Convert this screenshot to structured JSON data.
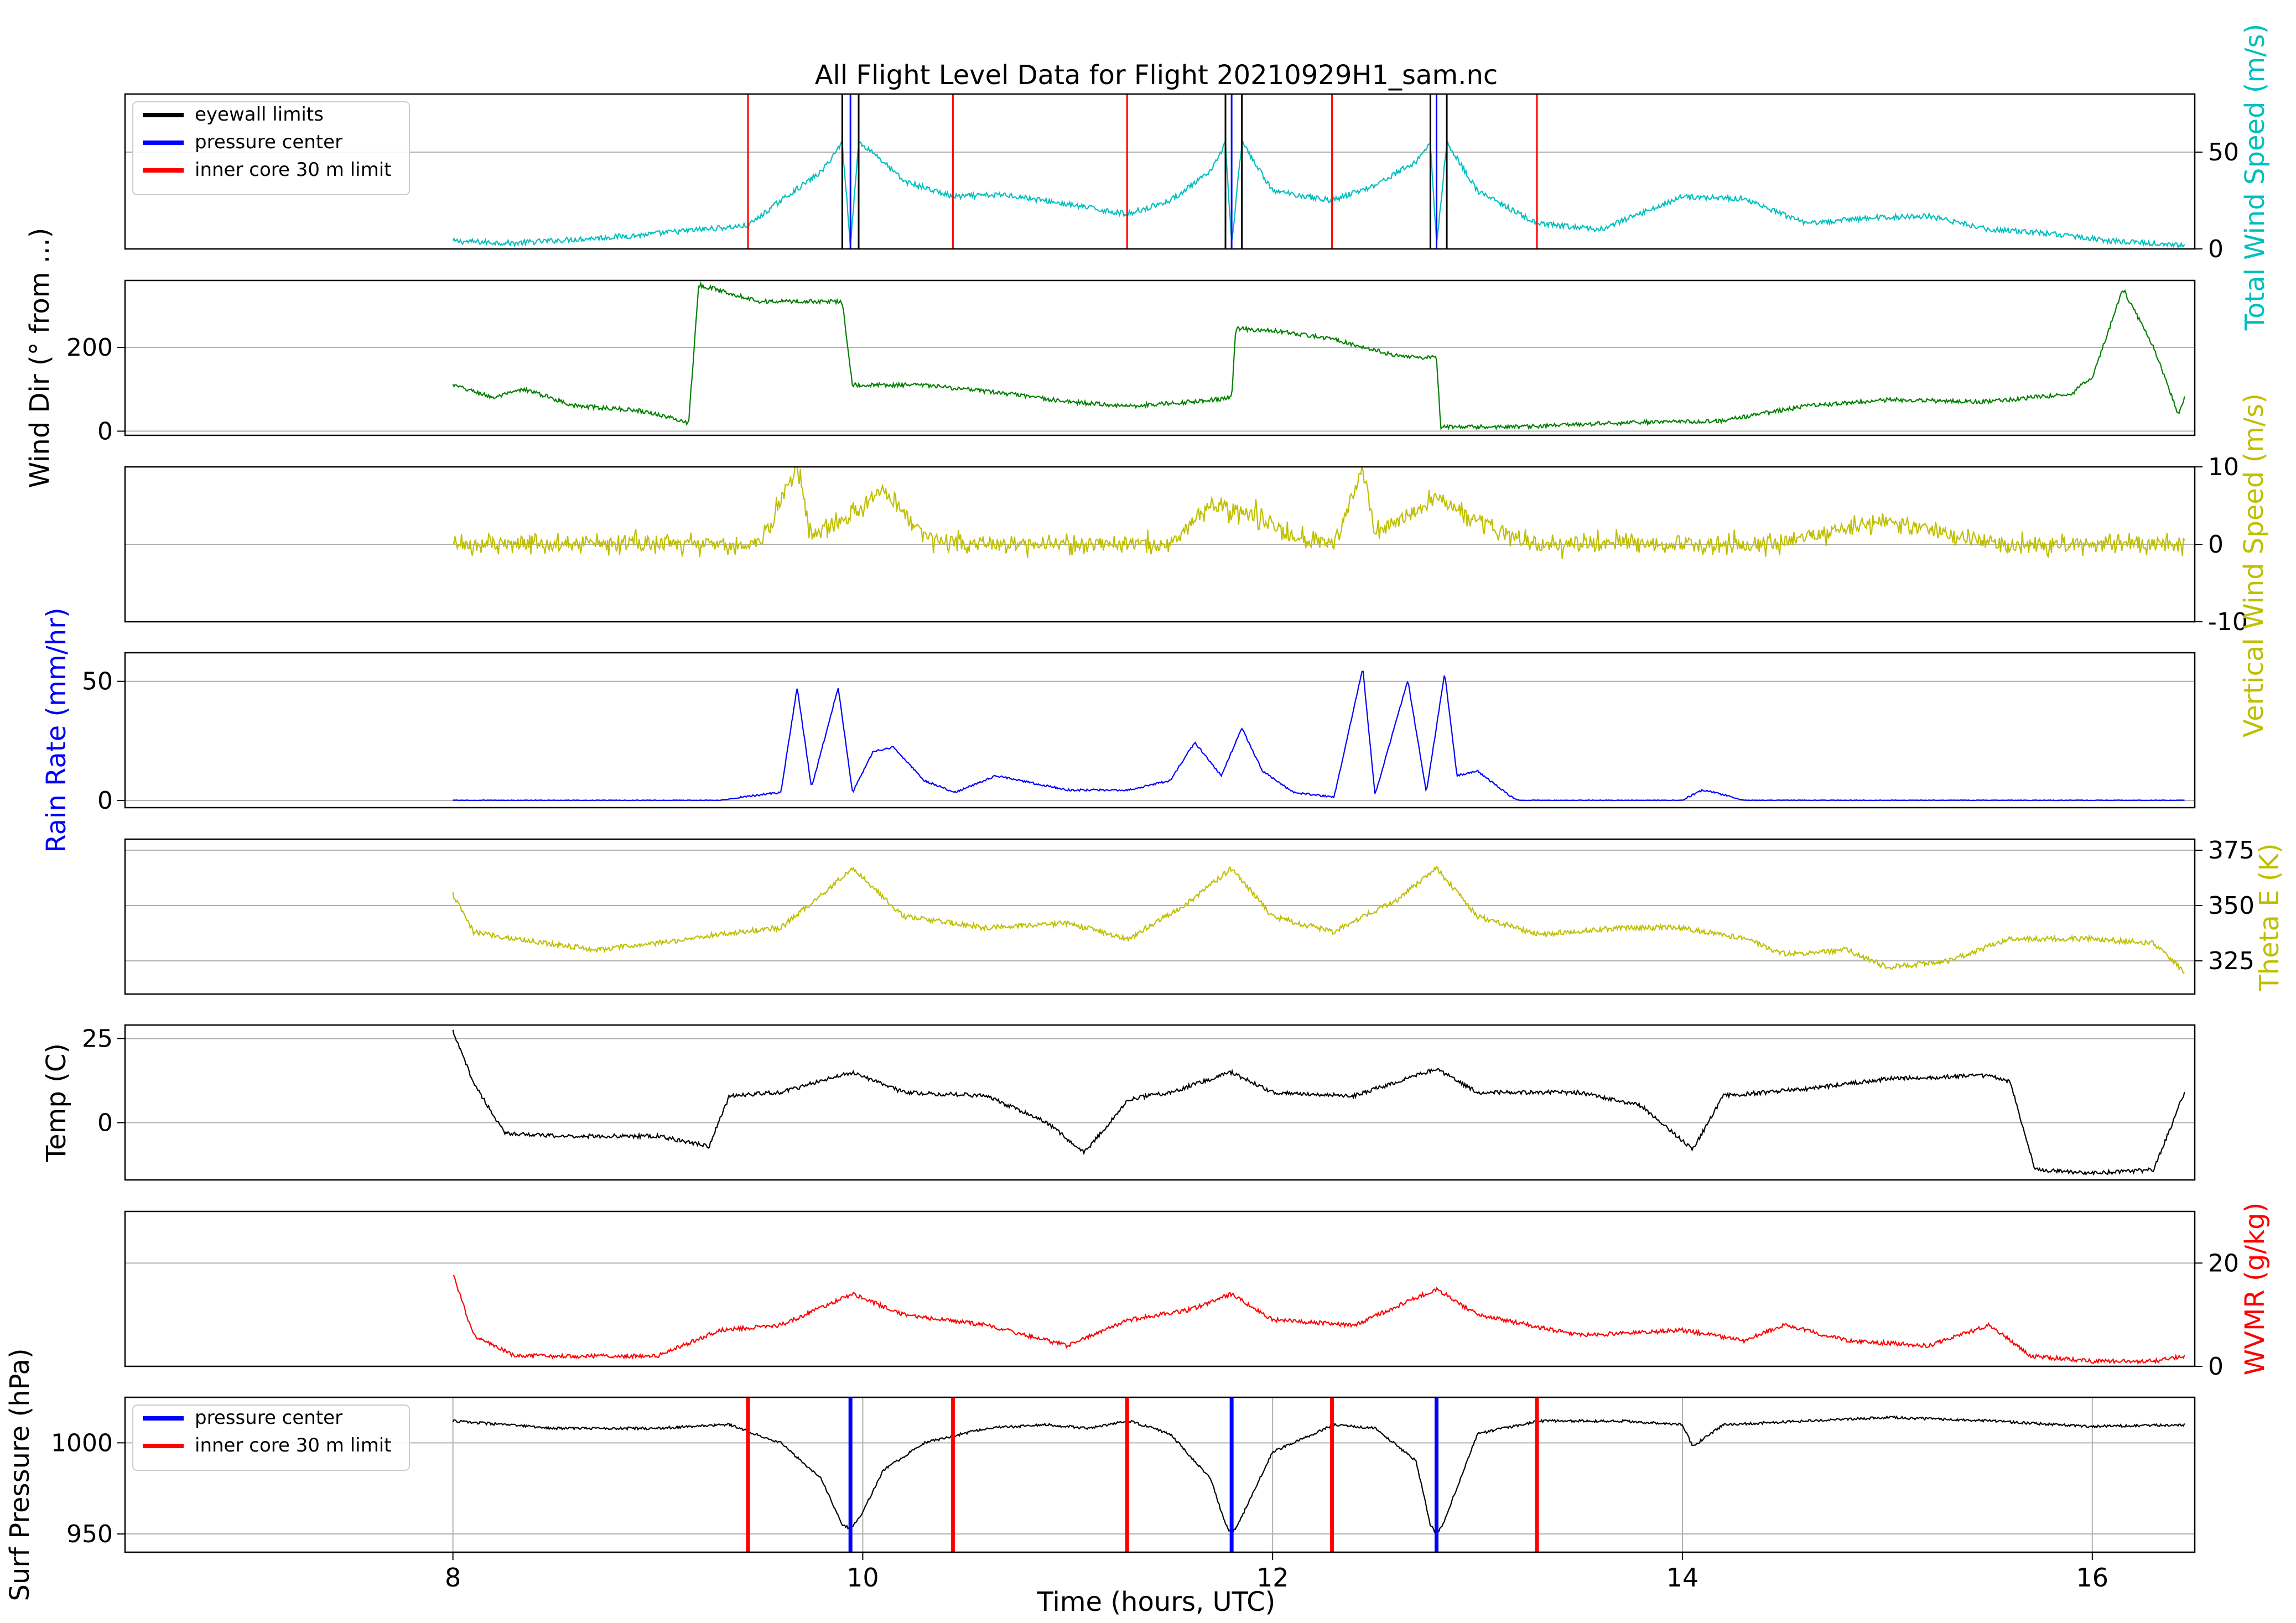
{
  "figure": {
    "title": "All Flight Level Data for Flight 20210929H1_sam.nc",
    "xlabel": "Time (hours, UTC)",
    "xlim": [
      6.4,
      16.5
    ],
    "xticks": [
      8,
      10,
      12,
      14,
      16
    ],
    "colors": {
      "wind_speed": "#00bfbf",
      "wind_dir": "#008000",
      "vertical_wind": "#bfbf00",
      "rain": "#0000ff",
      "theta_e": "#bfbf00",
      "temp": "#000000",
      "wvmr": "#ff0000",
      "pressure": "#000000",
      "eyewall": "#000000",
      "pressure_center": "#0000ff",
      "inner_core": "#ff0000",
      "grid": "#b0b0b0"
    }
  },
  "chart_data": {
    "type": "line",
    "markers": {
      "eyewall_limits": [
        9.9,
        9.98,
        11.77,
        11.85,
        12.77,
        12.85
      ],
      "pressure_centers": [
        9.94,
        11.8,
        12.8
      ],
      "inner_core_limits": [
        9.44,
        10.44,
        11.29,
        12.29,
        13.29
      ]
    },
    "panels": [
      {
        "id": "wind_speed",
        "ylabel": "Total Wind Speed (m/s)",
        "ylabel_side": "right",
        "ylim": [
          0,
          80
        ],
        "yticks": [
          0,
          50
        ],
        "legend": {
          "placement": "top-left",
          "entries": [
            "eyewall limits",
            "pressure center",
            "inner core 30 m limit"
          ]
        },
        "x": [
          8.0,
          8.3,
          8.6,
          8.9,
          9.2,
          9.44,
          9.6,
          9.8,
          9.9,
          9.94,
          9.98,
          10.05,
          10.2,
          10.44,
          10.7,
          11.0,
          11.29,
          11.5,
          11.7,
          11.77,
          11.8,
          11.85,
          12.0,
          12.29,
          12.5,
          12.7,
          12.77,
          12.8,
          12.85,
          13.0,
          13.29,
          13.6,
          14.0,
          14.3,
          14.6,
          14.9,
          15.2,
          15.5,
          15.8,
          16.1,
          16.45
        ],
        "values": [
          4,
          3,
          5,
          7,
          10,
          12,
          25,
          40,
          55,
          2,
          55,
          50,
          35,
          27,
          28,
          23,
          18,
          25,
          40,
          55,
          2,
          55,
          30,
          25,
          33,
          45,
          55,
          2,
          55,
          30,
          13,
          10,
          27,
          26,
          13,
          16,
          17,
          10,
          8,
          4,
          2
        ]
      },
      {
        "id": "wind_dir",
        "ylabel": "Wind Dir (° from ...)",
        "ylabel_side": "left",
        "ylim": [
          -10,
          360
        ],
        "yticks": [
          0,
          200
        ],
        "x": [
          8.0,
          8.2,
          8.35,
          8.6,
          8.9,
          9.0,
          9.15,
          9.2,
          9.5,
          9.9,
          9.95,
          10.3,
          10.7,
          11.0,
          11.3,
          11.6,
          11.8,
          11.82,
          12.0,
          12.3,
          12.6,
          12.8,
          12.82,
          13.2,
          13.7,
          14.2,
          14.6,
          15.0,
          15.5,
          15.9,
          16.0,
          16.15,
          16.3,
          16.42,
          16.45
        ],
        "values": [
          110,
          80,
          100,
          60,
          50,
          40,
          20,
          350,
          310,
          310,
          110,
          110,
          90,
          70,
          60,
          70,
          80,
          245,
          240,
          220,
          180,
          175,
          10,
          10,
          20,
          25,
          60,
          75,
          70,
          90,
          130,
          340,
          200,
          40,
          80
        ]
      },
      {
        "id": "vertical_wind",
        "ylabel": "Vertical Wind Speed (m/s)",
        "ylabel_side": "right",
        "ylim": [
          -10,
          10
        ],
        "yticks": [
          -10,
          0,
          10
        ],
        "x": [
          8.0,
          8.5,
          9.0,
          9.5,
          9.68,
          9.75,
          9.95,
          10.1,
          10.3,
          10.5,
          11.0,
          11.5,
          11.7,
          11.9,
          12.1,
          12.3,
          12.44,
          12.5,
          12.8,
          13.0,
          13.3,
          13.8,
          14.4,
          15.0,
          15.5,
          16.0,
          16.45
        ],
        "values": [
          0,
          0,
          0,
          0,
          10,
          1,
          4,
          7,
          1,
          0,
          0,
          0,
          5,
          4,
          1,
          0,
          10,
          1,
          6,
          3,
          0,
          0,
          0,
          3,
          0,
          0,
          0
        ]
      },
      {
        "id": "rain_rate",
        "ylabel": "Rain Rate (mm/hr)",
        "ylabel_side": "left",
        "ylim": [
          -3,
          62
        ],
        "yticks": [
          0,
          50
        ],
        "x": [
          8.0,
          9.3,
          9.5,
          9.6,
          9.68,
          9.75,
          9.88,
          9.95,
          10.05,
          10.15,
          10.3,
          10.45,
          10.65,
          11.0,
          11.3,
          11.5,
          11.62,
          11.75,
          11.85,
          11.95,
          12.1,
          12.3,
          12.44,
          12.5,
          12.66,
          12.75,
          12.84,
          12.9,
          13.0,
          13.15,
          13.2,
          14.0,
          14.1,
          14.3,
          16.45
        ],
        "values": [
          0,
          0,
          2,
          3,
          47,
          5,
          47,
          3,
          20,
          22,
          8,
          3,
          10,
          4,
          4,
          8,
          24,
          10,
          30,
          12,
          3,
          1,
          55,
          2,
          50,
          3,
          53,
          10,
          12,
          2,
          0,
          0,
          4,
          0,
          0
        ]
      },
      {
        "id": "theta_e",
        "ylabel": "Theta E (K)",
        "ylabel_side": "right",
        "ylim": [
          310,
          380
        ],
        "yticks": [
          325,
          350,
          375
        ],
        "x": [
          8.0,
          8.1,
          8.3,
          8.7,
          9.0,
          9.3,
          9.6,
          9.8,
          9.95,
          10.2,
          10.6,
          11.0,
          11.3,
          11.6,
          11.8,
          12.0,
          12.3,
          12.44,
          12.6,
          12.8,
          13.0,
          13.3,
          13.7,
          14.0,
          14.3,
          14.5,
          14.8,
          15.0,
          15.3,
          15.6,
          16.0,
          16.3,
          16.45
        ],
        "values": [
          355,
          338,
          335,
          330,
          333,
          337,
          340,
          355,
          367,
          345,
          340,
          342,
          335,
          352,
          367,
          345,
          338,
          345,
          352,
          367,
          345,
          337,
          340,
          340,
          335,
          328,
          330,
          322,
          325,
          335,
          335,
          333,
          320
        ]
      },
      {
        "id": "temp",
        "ylabel": "Temp (C)",
        "ylabel_side": "left",
        "ylim": [
          -17,
          29
        ],
        "yticks": [
          0,
          25
        ],
        "x": [
          8.0,
          8.1,
          8.25,
          8.5,
          9.0,
          9.25,
          9.35,
          9.6,
          9.95,
          10.2,
          10.6,
          10.9,
          11.08,
          11.3,
          11.5,
          11.8,
          12.0,
          12.4,
          12.8,
          13.0,
          13.5,
          13.8,
          14.05,
          14.2,
          14.6,
          15.0,
          15.5,
          15.6,
          15.72,
          16.0,
          16.3,
          16.45
        ],
        "values": [
          27,
          12,
          -3,
          -4,
          -4,
          -7,
          8,
          9,
          15,
          9,
          8,
          0,
          -9,
          7,
          9,
          15,
          9,
          8,
          16,
          9,
          9,
          5,
          -8,
          8,
          10,
          13,
          14,
          12,
          -14,
          -15,
          -14,
          9
        ]
      },
      {
        "id": "wvmr",
        "ylabel": "WVMR (g/kg)",
        "ylabel_side": "right",
        "ylim": [
          0,
          30
        ],
        "yticks": [
          0,
          20
        ],
        "x": [
          8.0,
          8.1,
          8.3,
          8.7,
          9.0,
          9.3,
          9.6,
          9.95,
          10.2,
          10.6,
          11.0,
          11.3,
          11.6,
          11.8,
          12.0,
          12.4,
          12.8,
          13.0,
          13.5,
          14.0,
          14.3,
          14.5,
          14.8,
          15.2,
          15.5,
          15.7,
          16.0,
          16.3,
          16.45
        ],
        "values": [
          18,
          6,
          2,
          2,
          2,
          7,
          8,
          14,
          10,
          8,
          4,
          9,
          11,
          14,
          9,
          8,
          15,
          10,
          6,
          7,
          5,
          8,
          5,
          4,
          8,
          2,
          1,
          1,
          2
        ]
      },
      {
        "id": "pressure",
        "ylabel": "Surf Pressure (hPa)",
        "ylabel_side": "left",
        "ylim": [
          940,
          1025
        ],
        "yticks": [
          950,
          1000
        ],
        "legend": {
          "placement": "top-left",
          "entries": [
            "pressure center",
            "inner core 30 m limit"
          ]
        },
        "x": [
          8.0,
          8.5,
          9.0,
          9.35,
          9.6,
          9.8,
          9.9,
          9.94,
          9.99,
          10.1,
          10.3,
          10.6,
          10.9,
          11.1,
          11.3,
          11.5,
          11.7,
          11.77,
          11.8,
          11.83,
          12.0,
          12.3,
          12.5,
          12.7,
          12.77,
          12.8,
          12.83,
          13.0,
          13.3,
          13.7,
          14.0,
          14.05,
          14.2,
          14.6,
          15.0,
          15.5,
          16.0,
          16.45
        ],
        "values": [
          1012,
          1008,
          1008,
          1010,
          1000,
          980,
          955,
          953,
          960,
          985,
          1000,
          1008,
          1010,
          1008,
          1012,
          1005,
          980,
          955,
          950,
          955,
          995,
          1010,
          1008,
          990,
          955,
          950,
          955,
          1005,
          1012,
          1012,
          1010,
          998,
          1010,
          1012,
          1014,
          1012,
          1009,
          1010
        ]
      }
    ]
  }
}
